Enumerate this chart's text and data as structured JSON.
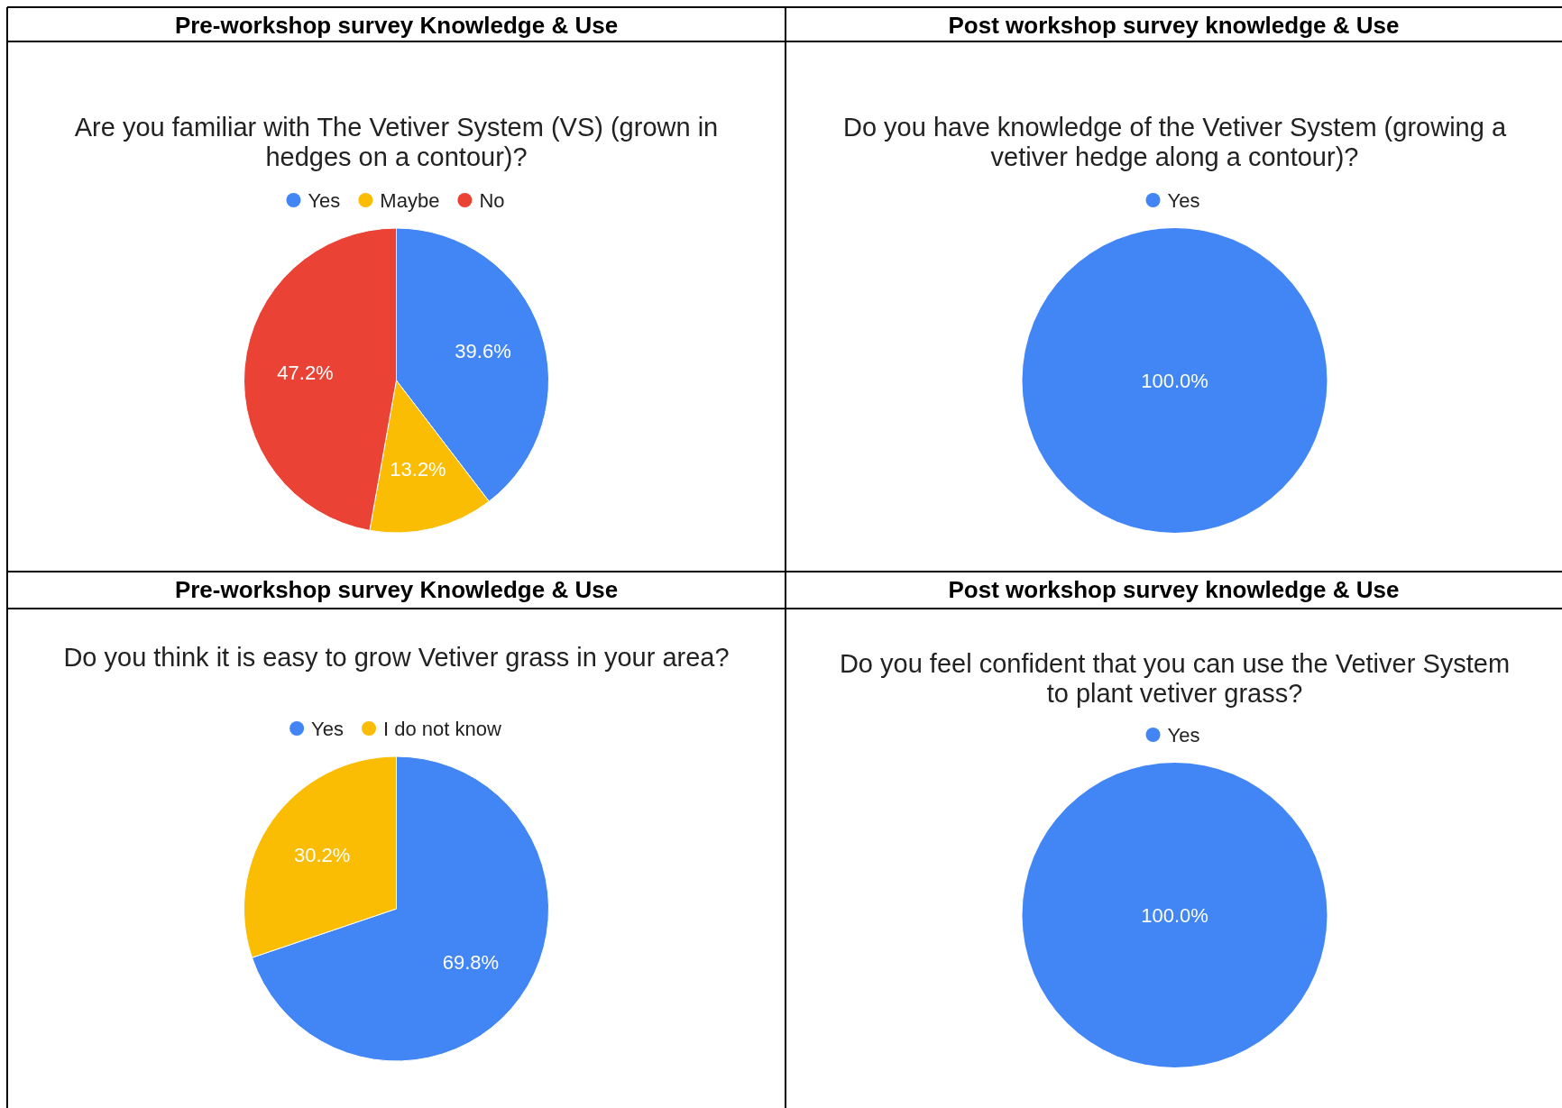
{
  "chart_data": [
    {
      "type": "pie",
      "title": "Are you familiar with The Vetiver System (VS) (grown in hedges on a contour)?",
      "annotations": [
        "Pre-workshop survey Knowledge & Use"
      ],
      "categories": [
        "Yes",
        "Maybe",
        "No"
      ],
      "values": [
        39.6,
        13.2,
        47.2
      ],
      "colors": [
        "#4285f4",
        "#fbbc04",
        "#ea4335"
      ],
      "value_labels": [
        "39.6%",
        "13.2%",
        "47.2%"
      ],
      "legend": "top"
    },
    {
      "type": "pie",
      "title": "Do you have knowledge of the Vetiver System (growing a vetiver hedge along a contour)?",
      "annotations": [
        "Post workshop survey knowledge & Use"
      ],
      "categories": [
        "Yes"
      ],
      "values": [
        100
      ],
      "colors": [
        "#4285f4"
      ],
      "value_labels": [
        "100.0%"
      ],
      "legend": "top"
    },
    {
      "type": "pie",
      "title": "Do you think it is easy to grow Vetiver grass in your area?",
      "annotations": [
        "Pre-workshop survey Knowledge & Use"
      ],
      "categories": [
        "Yes",
        "I do not know"
      ],
      "values": [
        69.8,
        30.2
      ],
      "colors": [
        "#4285f4",
        "#fbbc04"
      ],
      "value_labels": [
        "69.8%",
        "30.2%"
      ],
      "legend": "top"
    },
    {
      "type": "pie",
      "title": "Do you feel confident that you can use the Vetiver System to plant vetiver grass?",
      "annotations": [
        "Post workshop survey knowledge & Use"
      ],
      "categories": [
        "Yes"
      ],
      "values": [
        100
      ],
      "colors": [
        "#4285f4"
      ],
      "value_labels": [
        "100.0%"
      ],
      "legend": "top"
    }
  ]
}
